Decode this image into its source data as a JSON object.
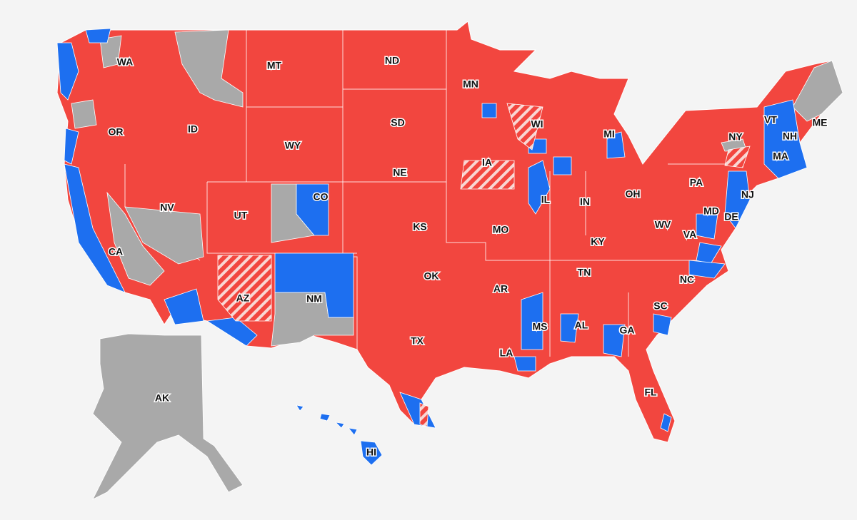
{
  "map": {
    "labels": [
      "WA",
      "MT",
      "ND",
      "MN",
      "OR",
      "ID",
      "SD",
      "WI",
      "MI",
      "VT",
      "NY",
      "NH",
      "ME",
      "MA",
      "WY",
      "IA",
      "NE",
      "CO",
      "NV",
      "UT",
      "IL",
      "IN",
      "OH",
      "PA",
      "NJ",
      "MD",
      "DE",
      "KS",
      "MO",
      "WV",
      "VA",
      "KY",
      "CA",
      "OK",
      "TN",
      "NC",
      "AR",
      "AZ",
      "NM",
      "SC",
      "MS",
      "AL",
      "GA",
      "TX",
      "LA",
      "FL",
      "AK",
      "HI"
    ]
  }
}
